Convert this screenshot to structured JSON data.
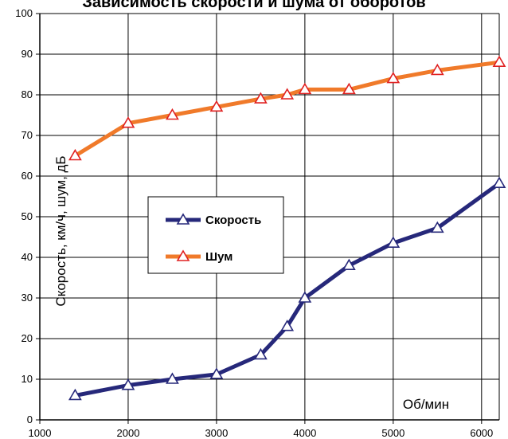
{
  "chart_data": {
    "type": "line",
    "title": "Зависимость скорости и шума от оборотов",
    "xlabel": "Об/мин",
    "ylabel": "Скорость, км/ч, шум, дБ",
    "xlim": [
      1000,
      6200
    ],
    "ylim": [
      0,
      100
    ],
    "xticks": [
      1000,
      2000,
      3000,
      4000,
      5000,
      6000
    ],
    "yticks": [
      0,
      10,
      20,
      30,
      40,
      50,
      60,
      70,
      80,
      90,
      100
    ],
    "grid": true,
    "legend_position": "middle-left",
    "series": [
      {
        "name": "Скорость",
        "color": "#26287a",
        "marker_color": "#26287a",
        "marker": "triangle",
        "x": [
          1400,
          2000,
          2500,
          3000,
          3500,
          3800,
          4000,
          4500,
          5000,
          5500,
          6200
        ],
        "y": [
          6,
          8.5,
          10,
          11.2,
          16,
          23,
          30,
          38,
          43.5,
          47.2,
          58.2
        ]
      },
      {
        "name": "Шум",
        "color": "#f07a2a",
        "marker_color": "#e02020",
        "marker": "triangle",
        "x": [
          1400,
          2000,
          2500,
          3000,
          3500,
          3800,
          4000,
          4500,
          5000,
          5500,
          6200
        ],
        "y": [
          65,
          73,
          75,
          77,
          79,
          80,
          81.3,
          81.3,
          84,
          86,
          88
        ]
      }
    ]
  }
}
